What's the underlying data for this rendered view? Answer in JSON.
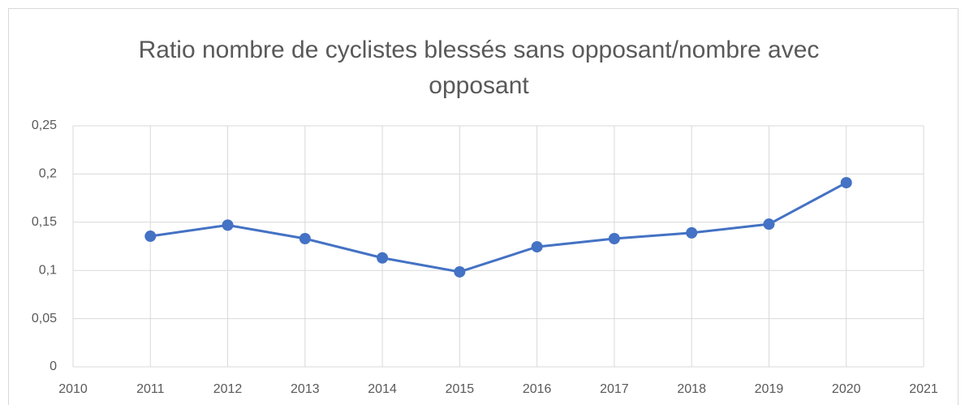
{
  "chart_data": {
    "type": "line",
    "title": "Ratio nombre de cyclistes blessés sans opposant/nombre avec opposant",
    "x": [
      2011,
      2012,
      2013,
      2014,
      2015,
      2016,
      2017,
      2018,
      2019,
      2020
    ],
    "series": [
      {
        "name": "Ratio",
        "color": "#4472c4",
        "values": [
          0.1355,
          0.147,
          0.133,
          0.113,
          0.0985,
          0.1245,
          0.133,
          0.139,
          0.148,
          0.191
        ]
      }
    ],
    "xlim": [
      2010,
      2021
    ],
    "xticks": [
      2010,
      2011,
      2012,
      2013,
      2014,
      2015,
      2016,
      2017,
      2018,
      2019,
      2020,
      2021
    ],
    "ylim": [
      0,
      0.25
    ],
    "yticks": [
      0,
      {
        "value": 0.05,
        "label": "0,05"
      },
      {
        "value": 0.1,
        "label": "0,1"
      },
      {
        "value": 0.15,
        "label": "0,15"
      },
      {
        "value": 0.2,
        "label": "0,2"
      },
      {
        "value": 0.25,
        "label": "0,25"
      }
    ],
    "grid": true
  }
}
